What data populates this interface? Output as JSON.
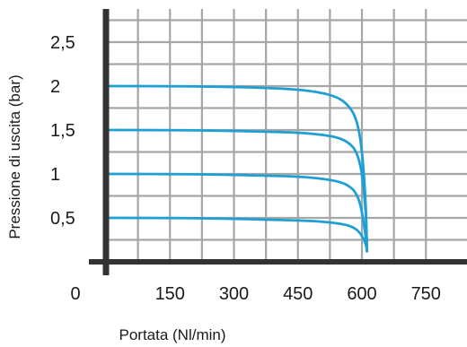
{
  "chart_data": {
    "type": "line",
    "xlabel": "Portata (Nl/min)",
    "ylabel": "Pressione di uscita (bar)",
    "x_ticks": [
      {
        "value": 0,
        "label": "0"
      },
      {
        "value": 150,
        "label": "150"
      },
      {
        "value": 300,
        "label": "300"
      },
      {
        "value": 450,
        "label": "450"
      },
      {
        "value": 600,
        "label": "600"
      },
      {
        "value": 750,
        "label": "750"
      }
    ],
    "y_ticks": [
      {
        "value": 0.5,
        "label": "0,5"
      },
      {
        "value": 1,
        "label": "1"
      },
      {
        "value": 1.5,
        "label": "1,5"
      },
      {
        "value": 2,
        "label": "2"
      },
      {
        "value": 2.5,
        "label": "2,5"
      }
    ],
    "xlim": [
      0,
      820
    ],
    "ylim": [
      0,
      2.8
    ],
    "grid": true,
    "colors": {
      "series": "#1e9fd6",
      "grid": "#a6a6a6",
      "axis": "#333333"
    },
    "series": [
      {
        "x": [
          0,
          150,
          300,
          375,
          450,
          500,
          540,
          565,
          585,
          597,
          604,
          609,
          611,
          612
        ],
        "y": [
          0.5,
          0.5,
          0.49,
          0.48,
          0.47,
          0.46,
          0.44,
          0.42,
          0.38,
          0.32,
          0.26,
          0.2,
          0.15,
          0.12
        ]
      },
      {
        "x": [
          0,
          150,
          300,
          375,
          450,
          500,
          540,
          565,
          585,
          597,
          604,
          609,
          611,
          612
        ],
        "y": [
          1.0,
          1.0,
          0.99,
          0.98,
          0.97,
          0.95,
          0.92,
          0.88,
          0.8,
          0.65,
          0.45,
          0.28,
          0.17,
          0.12
        ]
      },
      {
        "x": [
          0,
          150,
          300,
          375,
          450,
          500,
          540,
          565,
          585,
          597,
          604,
          609,
          611,
          612
        ],
        "y": [
          1.5,
          1.5,
          1.49,
          1.48,
          1.47,
          1.45,
          1.42,
          1.37,
          1.28,
          1.1,
          0.85,
          0.55,
          0.3,
          0.12
        ]
      },
      {
        "x": [
          0,
          150,
          300,
          375,
          450,
          500,
          540,
          565,
          585,
          597,
          604,
          609,
          611,
          612
        ],
        "y": [
          2.0,
          2.0,
          1.99,
          1.98,
          1.96,
          1.93,
          1.88,
          1.8,
          1.66,
          1.4,
          1.05,
          0.65,
          0.3,
          0.12
        ]
      }
    ]
  }
}
